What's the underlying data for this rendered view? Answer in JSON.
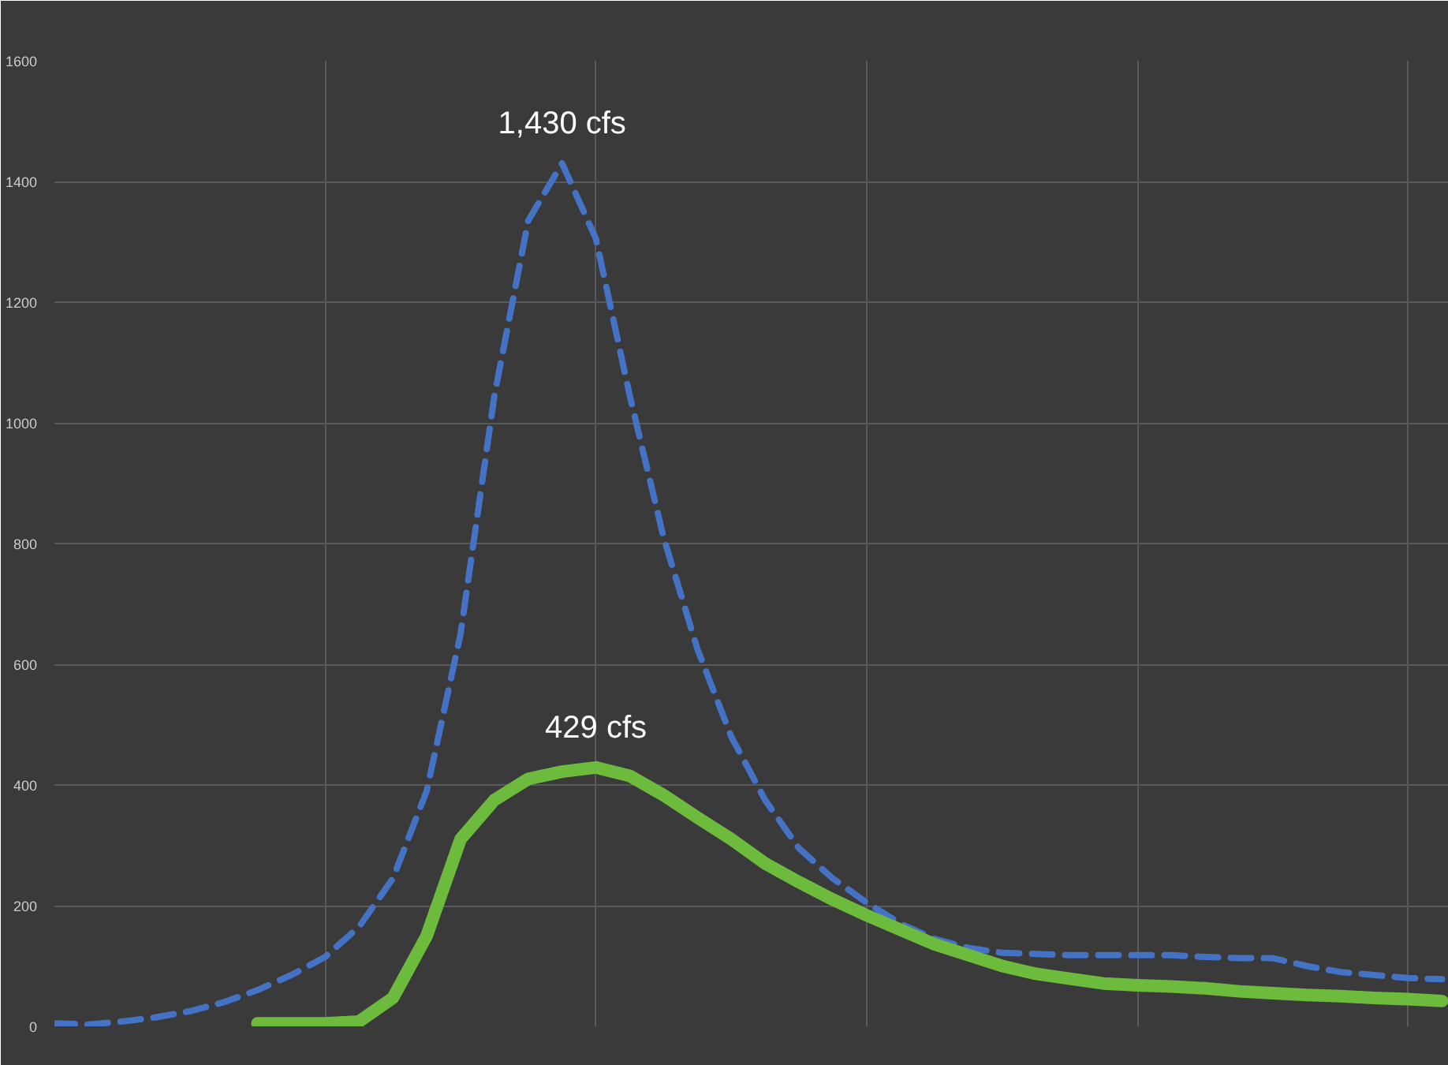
{
  "chart_data": {
    "type": "line",
    "categories": [
      null,
      null,
      null,
      null,
      null,
      null,
      null,
      null,
      null,
      null,
      null,
      null,
      null,
      null,
      null,
      null,
      null,
      null,
      null,
      null,
      null,
      null,
      null,
      null,
      null,
      null,
      null,
      null,
      null,
      null,
      null,
      null,
      null,
      null,
      null,
      null,
      null,
      null,
      null,
      null,
      null,
      null
    ],
    "series": [
      {
        "color": "#4472c4",
        "line_style": "dashed",
        "values": [
          5,
          3,
          8,
          15,
          25,
          40,
          60,
          85,
          115,
          165,
          245,
          390,
          650,
          1045,
          1335,
          1430,
          1305,
          1045,
          810,
          625,
          480,
          375,
          295,
          245,
          205,
          170,
          145,
          130,
          122,
          120,
          118,
          118,
          118,
          118,
          115,
          113,
          113,
          100,
          90,
          85,
          80,
          78
        ]
      },
      {
        "color": "#6cbb3c",
        "line_style": "solid",
        "values": [
          null,
          null,
          null,
          null,
          null,
          null,
          5,
          5,
          5,
          8,
          47,
          150,
          310,
          375,
          410,
          422,
          429,
          415,
          383,
          346,
          310,
          270,
          239,
          210,
          184,
          160,
          136,
          118,
          100,
          87,
          79,
          71,
          68,
          66,
          63,
          58,
          55,
          52,
          50,
          47,
          45,
          42
        ]
      }
    ],
    "ylim": [
      0,
      1600
    ],
    "yticks": [
      0,
      200,
      400,
      600,
      800,
      1000,
      1200,
      1400,
      1600
    ],
    "grid": true,
    "tick_labels": "y",
    "annotations": [
      {
        "text": "1,430 cfs",
        "y": 1430
      },
      {
        "text": "429 cfs",
        "y": 429
      }
    ]
  }
}
